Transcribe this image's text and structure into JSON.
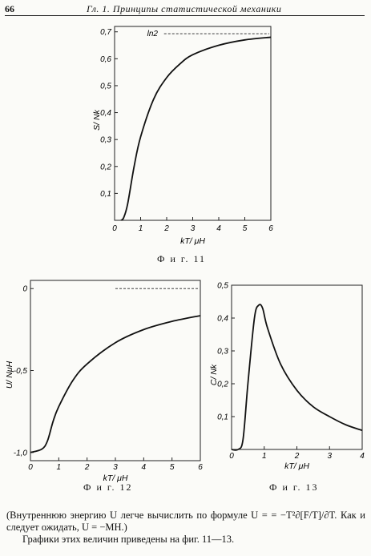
{
  "header": {
    "page_number": "66",
    "running_title": "Гл. 1. Принципы статистической механики"
  },
  "figures": {
    "fig11": {
      "caption": "Ф и г.  11"
    },
    "fig12": {
      "caption": "Ф и г.  12"
    },
    "fig13": {
      "caption": "Ф и г.  13"
    }
  },
  "text": {
    "line1": "(Внутреннюю энергию U легче вычислить по формуле U = = −T²∂[F/T]/∂T. Как и следует ожидать, U = −MH.)",
    "line2": "Графики этих величин приведены на фиг. 11—13."
  },
  "chart_data": [
    {
      "type": "line",
      "xlabel": "kT/ μH",
      "ylabel": "S/ Nk",
      "xlim": [
        0,
        6
      ],
      "ylim": [
        0,
        0.72
      ],
      "xticks": [
        "0",
        "1",
        "2",
        "3",
        "4",
        "5",
        "6"
      ],
      "yticks": [
        "0,1",
        "0,2",
        "0,3",
        "0,4",
        "0,5",
        "0,6",
        "0,7"
      ],
      "asymptote": {
        "y": 0.693,
        "label": "ln2"
      },
      "series": [
        {
          "x": [
            0.25,
            0.35,
            0.5,
            0.75,
            1.0,
            1.5,
            2.0,
            2.5,
            3.0,
            4.0,
            5.0,
            6.0
          ],
          "y": [
            0.0,
            0.01,
            0.06,
            0.2,
            0.31,
            0.45,
            0.53,
            0.58,
            0.615,
            0.65,
            0.67,
            0.68
          ]
        }
      ]
    },
    {
      "type": "line",
      "xlabel": "kT/ μH",
      "ylabel": "U/ NμH",
      "xlim": [
        0,
        6
      ],
      "ylim": [
        -1.05,
        0.05
      ],
      "xticks": [
        "0",
        "1",
        "2",
        "3",
        "4",
        "5",
        "6"
      ],
      "yticks": [
        "-1,0",
        "-0,5",
        "0"
      ],
      "asymptote": {
        "y": 0.0
      },
      "series": [
        {
          "x": [
            0.0,
            0.4,
            0.6,
            0.8,
            1.0,
            1.5,
            2.0,
            3.0,
            4.0,
            5.0,
            6.0
          ],
          "y": [
            -1.0,
            -0.98,
            -0.93,
            -0.81,
            -0.72,
            -0.56,
            -0.46,
            -0.33,
            -0.25,
            -0.2,
            -0.165
          ]
        }
      ]
    },
    {
      "type": "line",
      "xlabel": "kT/ μH",
      "ylabel": "C/ Nk",
      "xlim": [
        0,
        4
      ],
      "ylim": [
        0,
        0.5
      ],
      "xticks": [
        "0",
        "1",
        "2",
        "3",
        "4"
      ],
      "yticks": [
        "0,1",
        "0,2",
        "0,3",
        "0,4",
        "0,5"
      ],
      "series": [
        {
          "x": [
            0.0,
            0.2,
            0.35,
            0.5,
            0.7,
            0.83,
            0.95,
            1.1,
            1.5,
            2.0,
            2.5,
            3.0,
            3.5,
            4.0
          ],
          "y": [
            0.0,
            0.0,
            0.03,
            0.2,
            0.4,
            0.439,
            0.43,
            0.37,
            0.26,
            0.18,
            0.13,
            0.1,
            0.075,
            0.058
          ]
        }
      ]
    }
  ]
}
